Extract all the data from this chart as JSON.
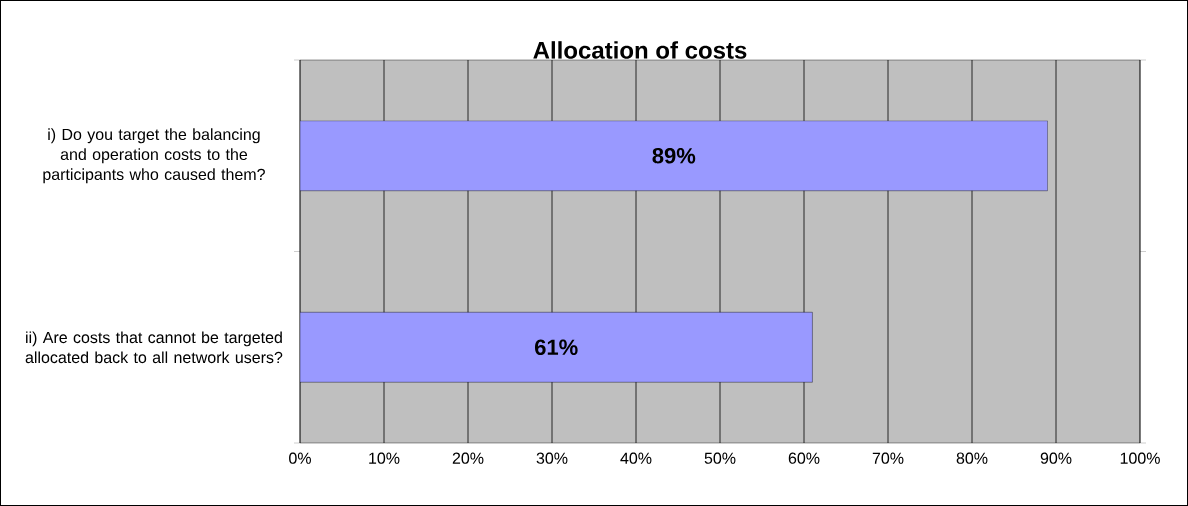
{
  "chart_data": {
    "type": "bar",
    "orientation": "horizontal",
    "title": "Allocation of costs",
    "categories": [
      "i) Do you target the balancing and operation costs to the participants who caused them?",
      "ii) Are costs that cannot be targeted allocated back to all network users?"
    ],
    "values": [
      89,
      61
    ],
    "color": "#9999ff",
    "value_labels": [
      "89%",
      "61%"
    ],
    "xlim": [
      0,
      100
    ],
    "xticks": [
      {
        "value": 0,
        "label": "0%"
      },
      {
        "value": 10,
        "label": "10%"
      },
      {
        "value": 20,
        "label": "20%"
      },
      {
        "value": 30,
        "label": "30%"
      },
      {
        "value": 40,
        "label": "40%"
      },
      {
        "value": 50,
        "label": "50%"
      },
      {
        "value": 60,
        "label": "60%"
      },
      {
        "value": 70,
        "label": "70%"
      },
      {
        "value": 80,
        "label": "80%"
      },
      {
        "value": 90,
        "label": "90%"
      },
      {
        "value": 100,
        "label": "100%"
      }
    ],
    "grid": "x"
  }
}
